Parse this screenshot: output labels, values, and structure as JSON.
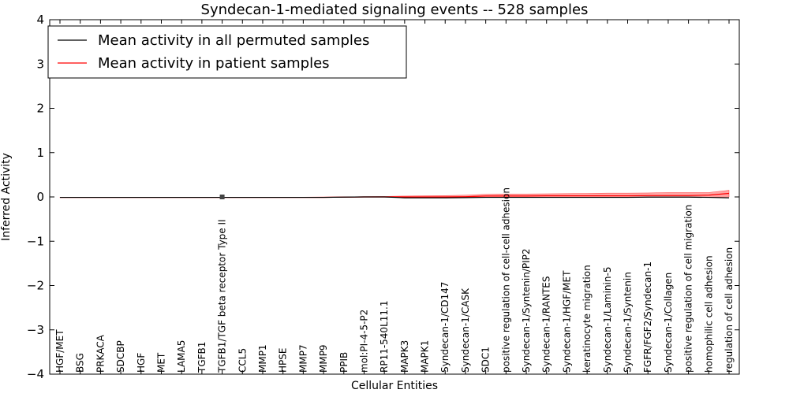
{
  "chart_data": {
    "type": "line",
    "title": "Syndecan-1-mediated signaling events -- 528 samples",
    "xlabel": "Cellular Entities",
    "ylabel": "Inferred Activity",
    "ylim": [
      -4,
      4
    ],
    "yticks": [
      -4,
      -3,
      -2,
      -1,
      0,
      1,
      2,
      3,
      4
    ],
    "ytick_labels": [
      "−4",
      "−3",
      "−2",
      "−1",
      "0",
      "1",
      "2",
      "3",
      "4"
    ],
    "legend_position": "top-left",
    "grid": false,
    "categories": [
      "HGF/MET",
      "BSG",
      "PRKACA",
      "SDCBP",
      "HGF",
      "MET",
      "LAMA5",
      "TGFB1",
      "TGFB1/TGF beta receptor Type II",
      "CCL5",
      "MMP1",
      "HPSE",
      "MMP7",
      "MMP9",
      "PPIB",
      "mol:PI-4-5-P2",
      "RP11-540L11.1",
      "MAPK3",
      "MAPK1",
      "Syndecan-1/CD147",
      "Syndecan-1/CASK",
      "SDC1",
      "positive regulation of cell-cell adhesion",
      "Syndecan-1/Syntenin/PIP2",
      "Syndecan-1/RANTES",
      "Syndecan-1/HGF/MET",
      "keratinocyte migration",
      "Syndecan-1/Laminin-5",
      "Syndecan-1/Syntenin",
      "FGFR/FGF2/Syndecan-1",
      "Syndecan-1/Collagen",
      "positive regulation of cell migration",
      "homophilic cell adhesion",
      "regulation of cell adhesion"
    ],
    "series": [
      {
        "name": "Mean activity in all permuted samples",
        "color": "#000000",
        "values": [
          -0.01,
          -0.01,
          -0.01,
          -0.01,
          -0.01,
          -0.01,
          -0.01,
          -0.01,
          -0.01,
          -0.01,
          -0.01,
          -0.01,
          -0.01,
          -0.01,
          -0.005,
          0.0,
          0.0,
          -0.02,
          -0.02,
          -0.02,
          -0.015,
          -0.01,
          -0.01,
          -0.01,
          -0.01,
          -0.01,
          -0.01,
          -0.01,
          -0.01,
          -0.005,
          -0.005,
          -0.005,
          -0.01,
          -0.02
        ]
      },
      {
        "name": "Mean activity in patient samples",
        "color": "#ff0000",
        "values": [
          -0.01,
          -0.01,
          -0.01,
          -0.01,
          -0.01,
          -0.01,
          -0.01,
          -0.01,
          -0.01,
          -0.01,
          -0.01,
          -0.01,
          -0.01,
          -0.01,
          -0.005,
          0.0,
          0.0,
          0.0,
          0.0,
          0.0,
          0.005,
          0.02,
          0.02,
          0.02,
          0.025,
          0.025,
          0.025,
          0.025,
          0.025,
          0.03,
          0.03,
          0.03,
          0.04,
          0.08
        ],
        "band_lower": [
          -0.015,
          -0.015,
          -0.015,
          -0.015,
          -0.015,
          -0.015,
          -0.015,
          -0.015,
          -0.015,
          -0.015,
          -0.015,
          -0.015,
          -0.015,
          -0.015,
          -0.01,
          -0.005,
          -0.005,
          -0.01,
          -0.01,
          -0.01,
          -0.01,
          -0.005,
          -0.005,
          -0.005,
          -0.005,
          -0.005,
          -0.005,
          -0.005,
          -0.005,
          -0.005,
          -0.005,
          -0.005,
          -0.005,
          0.0
        ],
        "band_upper": [
          -0.005,
          -0.005,
          -0.005,
          -0.005,
          -0.005,
          -0.005,
          -0.005,
          -0.005,
          -0.005,
          -0.005,
          -0.005,
          -0.005,
          -0.005,
          -0.0,
          0.0,
          0.005,
          0.01,
          0.02,
          0.025,
          0.03,
          0.04,
          0.06,
          0.065,
          0.065,
          0.07,
          0.075,
          0.08,
          0.085,
          0.085,
          0.09,
          0.1,
          0.1,
          0.1,
          0.15
        ]
      }
    ]
  }
}
